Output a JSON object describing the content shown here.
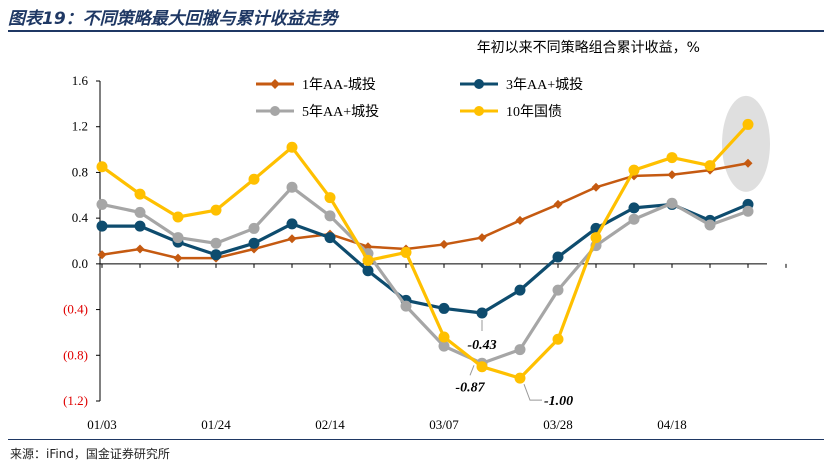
{
  "figure_title": "图表19：不同策略最大回撤与累计收益走势",
  "source": "来源：iFind，国金证券研究所",
  "chart_data": {
    "type": "line",
    "title": "年初以来不同策略组合累计收益，%",
    "xlabel": "",
    "ylabel": "",
    "ylim": [
      -1.2,
      1.6
    ],
    "yticks": [
      1.6,
      1.2,
      0.8,
      0.4,
      0.0,
      -0.4,
      -0.8,
      -1.2
    ],
    "ytick_labels": [
      "1.6",
      "1.2",
      "0.8",
      "0.4",
      "0.0",
      "(0.4)",
      "(0.8)",
      "(1.2)"
    ],
    "negative_label_color": "#e00000",
    "xtick_labels": [
      {
        "label": "01/03",
        "index": 0
      },
      {
        "label": "01/24",
        "index": 3
      },
      {
        "label": "02/14",
        "index": 6
      },
      {
        "label": "03/07",
        "index": 9
      },
      {
        "label": "03/28",
        "index": 12
      },
      {
        "label": "04/18",
        "index": 15
      }
    ],
    "n_points": 18,
    "legend_position": "top",
    "series": [
      {
        "name": "1年AA-城投",
        "color": "#c55a11",
        "marker": "diamond",
        "values": [
          0.08,
          0.13,
          0.05,
          0.05,
          0.13,
          0.22,
          0.26,
          0.15,
          0.13,
          0.17,
          0.23,
          0.38,
          0.52,
          0.67,
          0.77,
          0.78,
          0.82,
          0.88
        ]
      },
      {
        "name": "3年AA+城投",
        "color": "#0e4c6e",
        "marker": "circle",
        "values": [
          0.33,
          0.33,
          0.19,
          0.08,
          0.18,
          0.35,
          0.23,
          -0.06,
          -0.32,
          -0.39,
          -0.43,
          -0.23,
          0.06,
          0.31,
          0.49,
          0.52,
          0.38,
          0.52
        ]
      },
      {
        "name": "5年AA+城投",
        "color": "#a6a6a6",
        "marker": "circle",
        "values": [
          0.52,
          0.45,
          0.23,
          0.18,
          0.31,
          0.67,
          0.42,
          0.09,
          -0.37,
          -0.72,
          -0.87,
          -0.75,
          -0.23,
          0.16,
          0.39,
          0.53,
          0.34,
          0.46
        ]
      },
      {
        "name": "10年国债",
        "color": "#ffc000",
        "marker": "circle",
        "values": [
          0.85,
          0.61,
          0.41,
          0.47,
          0.74,
          1.02,
          0.58,
          0.03,
          0.1,
          -0.64,
          -0.9,
          -1.0,
          -0.66,
          0.23,
          0.82,
          0.93,
          0.86,
          1.22
        ]
      }
    ],
    "annotations": [
      {
        "text": "-0.43",
        "series": "3年AA+城投",
        "index": 10
      },
      {
        "text": "-0.87",
        "series": "5年AA+城投",
        "index": 10
      },
      {
        "text": "-1.00",
        "series": "10年国债",
        "index": 11
      }
    ],
    "highlight_point": {
      "index": 17,
      "fill": "#d9d9d9"
    }
  }
}
